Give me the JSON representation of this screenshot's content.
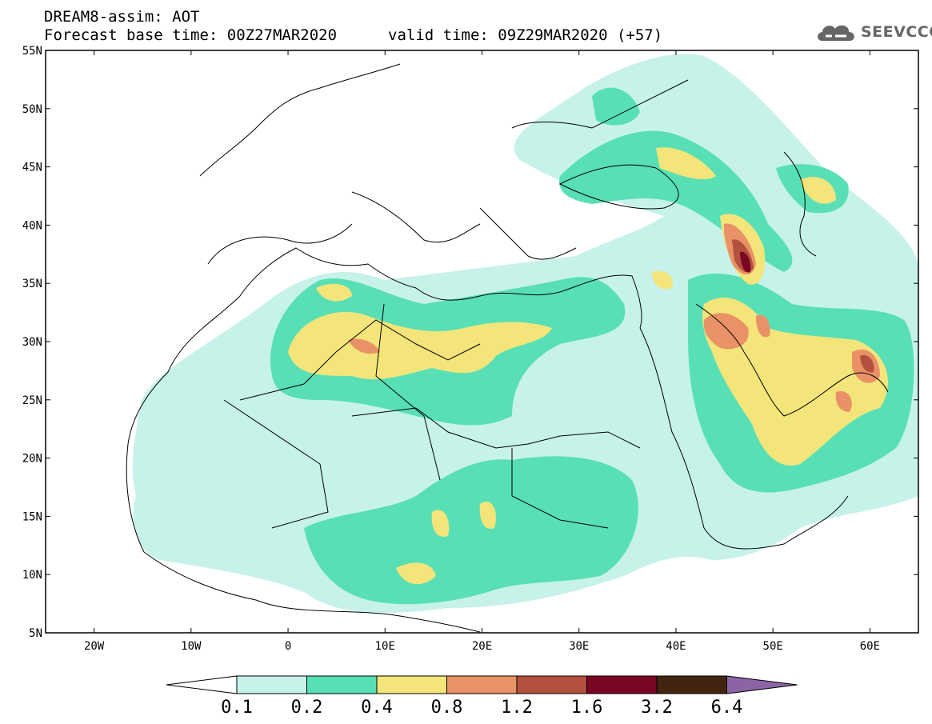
{
  "title": {
    "line1": "DREAM8-assim: AOT",
    "line2": "Forecast base time: 00Z27MAR2020",
    "valid": "valid time: 09Z29MAR2020 (+57)"
  },
  "logo": {
    "text": "SEEVCCC",
    "icon": "cloud-icon"
  },
  "map": {
    "lon_range": [
      -25,
      65
    ],
    "lat_range": [
      5,
      55
    ],
    "lat_labels": [
      "55N",
      "50N",
      "45N",
      "40N",
      "35N",
      "30N",
      "25N",
      "20N",
      "15N",
      "10N",
      "5N"
    ],
    "lon_labels": [
      "20W",
      "10W",
      "0",
      "10E",
      "20E",
      "30E",
      "40E",
      "50E",
      "60E"
    ],
    "background_color": "#ffffff",
    "boundary_color": "#000000"
  },
  "colorbar": {
    "labels": [
      "0.1",
      "0.2",
      "0.4",
      "0.8",
      "1.2",
      "1.6",
      "3.2",
      "6.4"
    ],
    "colors": [
      "#ffffff",
      "#c6f2ea",
      "#58dfb6",
      "#f3e57a",
      "#ea9267",
      "#b2513e",
      "#7a0525",
      "#412310",
      "#8b64a5"
    ]
  }
}
